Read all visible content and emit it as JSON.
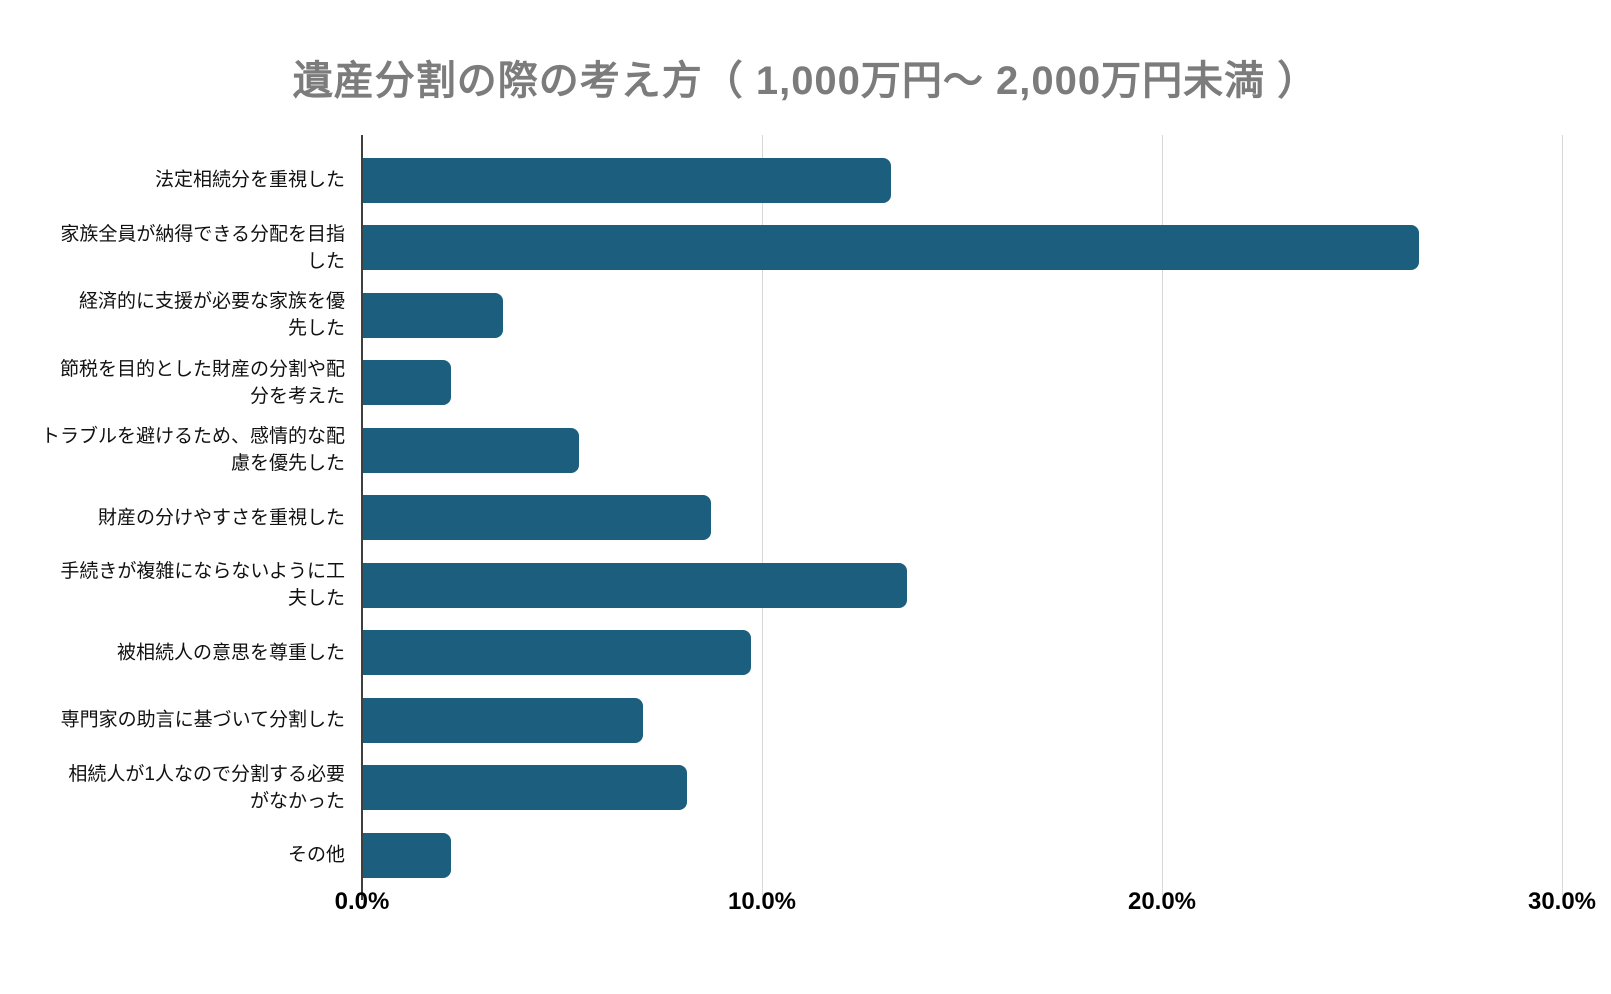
{
  "title": "遺産分割の際の考え方（ 1,000万円～ 2,000万円未満 ）",
  "colors": {
    "bar": "#1b5e7d",
    "title": "#7c7c7c",
    "gridline": "#d8d8d8",
    "axis_line": "#3f3f3f",
    "tick_label": "#000000",
    "category_label": "#111111",
    "background": "#ffffff"
  },
  "chart_data": {
    "type": "bar",
    "orientation": "horizontal",
    "title": "遺産分割の際の考え方（ 1,000万円～ 2,000万円未満 ）",
    "xlabel": "",
    "ylabel": "",
    "xlim": [
      0,
      30
    ],
    "grid": true,
    "legend": false,
    "x_ticks": [
      {
        "value": 0,
        "label": "0.0%"
      },
      {
        "value": 10,
        "label": "10.0%"
      },
      {
        "value": 20,
        "label": "20.0%"
      },
      {
        "value": 30,
        "label": "30.0%"
      }
    ],
    "categories": [
      "法定相続分を重視した",
      "家族全員が納得できる分配を目指した",
      "経済的に支援が必要な家族を優先した",
      "節税を目的とした財産の分割や配分を考えた",
      "トラブルを避けるため、感情的な配慮を優先した",
      "財産の分けやすさを重視した",
      "手続きが複雑にならないように工夫した",
      "被相続人の意思を尊重した",
      "専門家の助言に基づいて分割した",
      "相続人が1人なので分割する必要がなかった",
      "その他"
    ],
    "categories_display": [
      "法定相続分を重視した",
      "家族全員が納得できる分配を目指\nした",
      "経済的に支援が必要な家族を優\n先した",
      "節税を目的とした財産の分割や配\n分を考えた",
      "トラブルを避けるため、感情的な配\n慮を優先した",
      "財産の分けやすさを重視した",
      "手続きが複雑にならないように工\n夫した",
      "被相続人の意思を尊重した",
      "専門家の助言に基づいて分割した",
      "相続人が1人なので分割する必要\nがなかった",
      "その他"
    ],
    "values": [
      13.2,
      26.4,
      3.5,
      2.2,
      5.4,
      8.7,
      13.6,
      9.7,
      7.0,
      8.1,
      2.2
    ],
    "unit": "%"
  }
}
